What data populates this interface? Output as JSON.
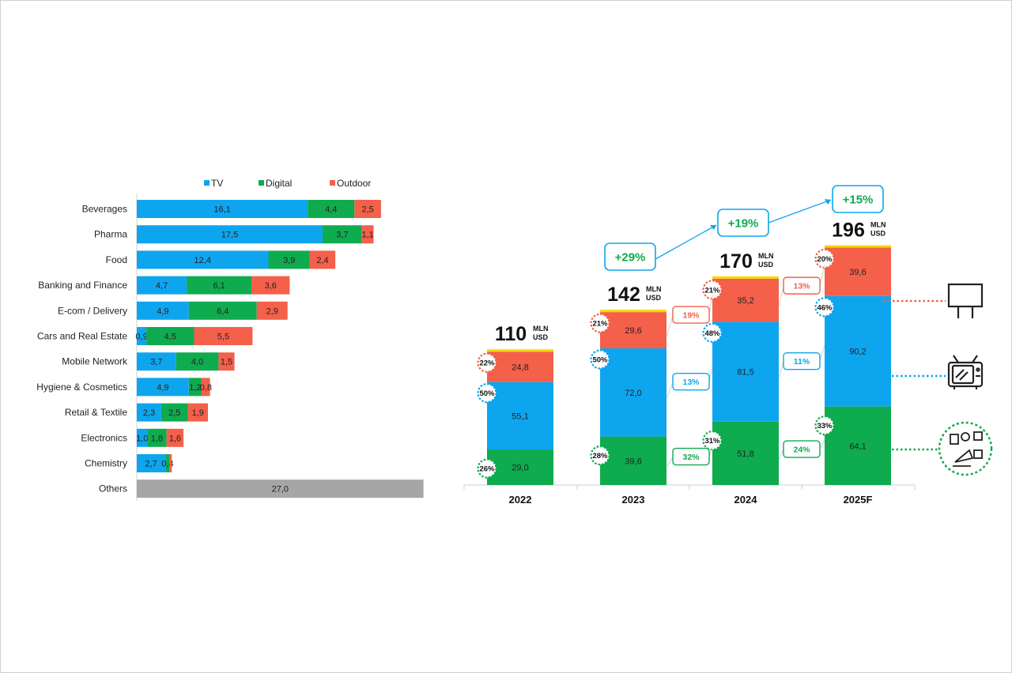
{
  "chart_data": [
    {
      "type": "bar",
      "orientation": "horizontal",
      "stacked": true,
      "legend_position": "top",
      "legend": [
        "TV",
        "Digital",
        "Outdoor"
      ],
      "categories": [
        "Beverages",
        "Pharma",
        "Food",
        "Banking and Finance",
        "E-com / Delivery",
        "Cars and Real Estate",
        "Mobile Network",
        "Hygiene & Cosmetics",
        "Retail & Textile",
        "Electronics",
        "Chemistry",
        "Others"
      ],
      "series": [
        {
          "name": "TV",
          "color": "#0ea5ef",
          "values": [
            16.1,
            17.5,
            12.4,
            4.7,
            4.9,
            0.9,
            3.7,
            4.9,
            2.3,
            1.0,
            2.7,
            null
          ],
          "labels": [
            "16,1",
            "17,5",
            "12,4",
            "4,7",
            "4,9",
            "0,9",
            "3,7",
            "4,9",
            "2,3",
            "1,0",
            "2,7",
            ""
          ]
        },
        {
          "name": "Digital",
          "color": "#0fab4f",
          "values": [
            4.4,
            3.7,
            3.9,
            6.1,
            6.4,
            4.5,
            4.0,
            1.2,
            2.5,
            1.8,
            0.4,
            null
          ],
          "labels": [
            "4,4",
            "3,7",
            "3,9",
            "6,1",
            "6,4",
            "4,5",
            "4,0",
            "1,2",
            "2,5",
            "1,8",
            "0,4",
            ""
          ]
        },
        {
          "name": "Outdoor",
          "color": "#f4604a",
          "values": [
            2.5,
            1.1,
            2.4,
            3.6,
            2.9,
            5.5,
            1.5,
            0.8,
            1.9,
            1.6,
            0.2,
            null
          ],
          "labels": [
            "2,5",
            "1,1",
            "2,4",
            "3,6",
            "2,9",
            "5,5",
            "1,5",
            "0,8",
            "1,9",
            "1,6",
            "",
            ""
          ]
        }
      ],
      "others": {
        "value": 27.0,
        "label": "27,0",
        "color": "#a6a6a6"
      },
      "xlim": [
        0,
        27
      ]
    },
    {
      "type": "bar",
      "stacked": true,
      "categories": [
        "2022",
        "2023",
        "2024",
        "2025F"
      ],
      "totals": [
        110,
        142,
        170,
        196
      ],
      "total_labels": [
        "110",
        "142",
        "170",
        "196"
      ],
      "total_unit_line1": "MLN",
      "total_unit_line2": "USD",
      "series": [
        {
          "name": "Digital",
          "color": "#0fab4f",
          "values": [
            29.0,
            39.6,
            51.8,
            64.1
          ],
          "labels": [
            "29,0",
            "39,6",
            "51,8",
            "64,1"
          ],
          "shares": [
            "26%",
            "28%",
            "31%",
            "33%"
          ],
          "growth": [
            "32%",
            "24%"
          ]
        },
        {
          "name": "TV",
          "color": "#0ea5ef",
          "values": [
            55.1,
            72.0,
            81.5,
            90.2
          ],
          "labels": [
            "55,1",
            "72,0",
            "81,5",
            "90,2"
          ],
          "shares": [
            "50%",
            "50%",
            "48%",
            "46%"
          ],
          "growth": [
            "13%",
            "11%"
          ]
        },
        {
          "name": "Outdoor",
          "color": "#f4604a",
          "values": [
            24.8,
            29.6,
            35.2,
            39.6
          ],
          "labels": [
            "24,8",
            "29,6",
            "35,2",
            "39,6"
          ],
          "shares": [
            "22%",
            "21%",
            "21%",
            "20%"
          ],
          "growth": [
            "19%",
            "13%"
          ]
        }
      ],
      "total_growth": [
        "+29%",
        "+19%",
        "+15%"
      ],
      "icons": [
        "billboard-icon",
        "tv-icon",
        "digital-media-icon"
      ],
      "accent_yellow": "#f5d800"
    }
  ]
}
